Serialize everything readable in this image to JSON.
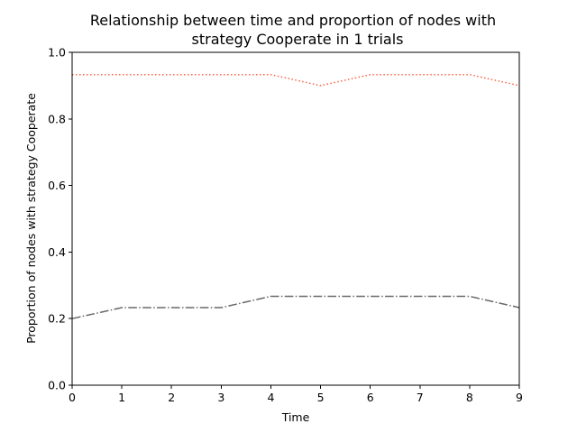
{
  "chart_data": {
    "type": "line",
    "title_lines": [
      "Relationship between time and proportion of nodes with",
      "strategy Cooperate in 1 trials"
    ],
    "xlabel": "Time",
    "ylabel": "Proportion of nodes with strategy Cooperate",
    "xlim": [
      0,
      9
    ],
    "ylim": [
      0.0,
      1.0
    ],
    "x_ticks": [
      "0",
      "1",
      "2",
      "3",
      "4",
      "5",
      "6",
      "7",
      "8",
      "9"
    ],
    "y_ticks": [
      "0.0",
      "0.2",
      "0.4",
      "0.6",
      "0.8",
      "1.0"
    ],
    "grid": false,
    "x": [
      0,
      1,
      2,
      3,
      4,
      5,
      6,
      7,
      8,
      9
    ],
    "series": [
      {
        "values": [
          0.933,
          0.933,
          0.933,
          0.933,
          0.933,
          0.9,
          0.933,
          0.933,
          0.933,
          0.9
        ],
        "color": "#ff6347",
        "style": "dotted"
      },
      {
        "values": [
          0.2,
          0.233,
          0.233,
          0.233,
          0.267,
          0.267,
          0.267,
          0.267,
          0.267,
          0.233
        ],
        "color": "#696969",
        "style": "dashdot"
      }
    ]
  }
}
